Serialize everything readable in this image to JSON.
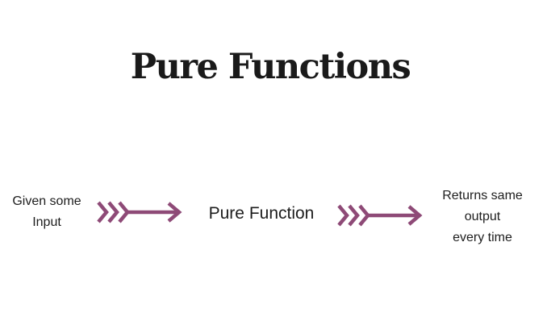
{
  "title": "Pure Functions",
  "input": {
    "line1": "Given some",
    "line2": "Input"
  },
  "function_label": "Pure Function",
  "output": {
    "line1": "Returns same",
    "line2": "output",
    "line3": "every time"
  },
  "colors": {
    "arrow": "#8e4a77",
    "text": "#1d1d1d"
  },
  "icons": {
    "arrow": "chevron-arrow-right-icon"
  }
}
